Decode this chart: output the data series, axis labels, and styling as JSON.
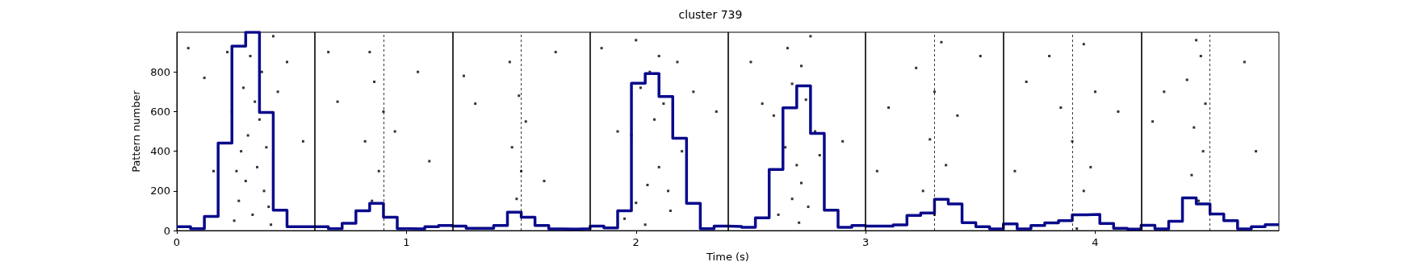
{
  "chart_data": {
    "type": "scatter",
    "title": "cluster 739",
    "xlabel": "Time (s)",
    "ylabel": "Pattern number",
    "xlim": [
      0,
      4.8
    ],
    "ylim": [
      0,
      1000
    ],
    "xticks": [
      0,
      1,
      2,
      3,
      4
    ],
    "yticks": [
      0,
      200,
      400,
      600,
      800
    ],
    "grid": false,
    "marker": "square",
    "series": [
      {
        "color": "#000000",
        "x": [
          0.25,
          0.27,
          0.3,
          0.33,
          0.35,
          0.38,
          0.4,
          0.28,
          0.31,
          0.36,
          0.34,
          0.29,
          0.37,
          0.32,
          0.3,
          0.26,
          0.39,
          0.41,
          0.24,
          0.44,
          0.22,
          0.05,
          0.12,
          0.48,
          0.55,
          0.16,
          0.42,
          0.85,
          0.88,
          0.82,
          0.9,
          0.86,
          0.84,
          0.7,
          1.05,
          1.1,
          0.95,
          0.66,
          1.48,
          1.5,
          1.46,
          1.52,
          1.49,
          1.45,
          1.3,
          1.65,
          1.6,
          1.25,
          1.95,
          2.0,
          2.05,
          2.1,
          2.15,
          2.2,
          1.98,
          2.08,
          2.12,
          2.02,
          2.06,
          2.1,
          2.0,
          2.18,
          1.92,
          2.25,
          2.04,
          2.14,
          1.85,
          2.35,
          2.62,
          2.68,
          2.72,
          2.75,
          2.7,
          2.65,
          2.78,
          2.6,
          2.74,
          2.68,
          2.72,
          2.66,
          2.76,
          2.55,
          2.8,
          2.5,
          2.9,
          2.71,
          3.3,
          3.25,
          3.35,
          3.28,
          3.4,
          3.3,
          3.22,
          3.33,
          3.1,
          3.5,
          3.05,
          3.92,
          3.95,
          3.98,
          3.9,
          3.85,
          4.0,
          3.8,
          3.95,
          3.7,
          4.1,
          3.65,
          4.45,
          4.42,
          4.47,
          4.43,
          4.48,
          4.4,
          4.46,
          4.44,
          4.3,
          4.65,
          4.7,
          4.25
        ],
        "values": [
          50,
          150,
          250,
          80,
          320,
          200,
          120,
          400,
          480,
          560,
          650,
          720,
          800,
          880,
          950,
          300,
          420,
          30,
          600,
          700,
          900,
          920,
          770,
          850,
          450,
          300,
          980,
          150,
          300,
          450,
          600,
          750,
          900,
          650,
          800,
          350,
          500,
          900,
          160,
          300,
          420,
          550,
          680,
          850,
          640,
          900,
          250,
          780,
          60,
          140,
          230,
          320,
          100,
          400,
          480,
          560,
          640,
          720,
          800,
          880,
          960,
          850,
          500,
          700,
          30,
          200,
          920,
          600,
          80,
          160,
          240,
          120,
          330,
          420,
          500,
          580,
          660,
          740,
          830,
          920,
          980,
          640,
          380,
          850,
          450,
          40,
          80,
          200,
          330,
          460,
          580,
          700,
          820,
          950,
          620,
          880,
          300,
          10,
          200,
          320,
          450,
          620,
          700,
          880,
          940,
          750,
          600,
          300,
          150,
          280,
          400,
          520,
          640,
          760,
          880,
          960,
          700,
          850,
          400,
          550
        ]
      },
      {
        "type": "histogram",
        "color": "#0a0a8c",
        "line_style": "solid",
        "bins": [
          0,
          0.06,
          0.12,
          0.18,
          0.24,
          0.3,
          0.36,
          0.42,
          0.48,
          0.54,
          0.6,
          0.66,
          0.72,
          0.78,
          0.84,
          0.9,
          0.96,
          1.02,
          1.08,
          1.14,
          1.2,
          1.26,
          1.32,
          1.38,
          1.44,
          1.5,
          1.56,
          1.62,
          1.68,
          1.74,
          1.8,
          1.86,
          1.92,
          1.98,
          2.04,
          2.1,
          2.16,
          2.22,
          2.28,
          2.34,
          2.4,
          2.46,
          2.52,
          2.58,
          2.64,
          2.7,
          2.76,
          2.82,
          2.88,
          2.94,
          3,
          3.06,
          3.12,
          3.18,
          3.24,
          3.3,
          3.36,
          3.42,
          3.48,
          3.54,
          3.6,
          3.66,
          3.72,
          3.78,
          3.84,
          3.9,
          3.96,
          4.02,
          4.08,
          4.14,
          4.2,
          4.26,
          4.32,
          4.38,
          4.44,
          4.5,
          4.56,
          4.62,
          4.68,
          4.74,
          4.8
        ],
        "values": [
          20,
          10,
          72,
          441,
          930,
          1000,
          596,
          103,
          20,
          20,
          20,
          10,
          37,
          100,
          138,
          67,
          10,
          9,
          20,
          26,
          23,
          12,
          12,
          26,
          93,
          67,
          26,
          9,
          8,
          10,
          23,
          14,
          100,
          743,
          792,
          676,
          466,
          138,
          10,
          23,
          21,
          17,
          64,
          308,
          619,
          730,
          490,
          103,
          17,
          26,
          23,
          23,
          29,
          77,
          89,
          158,
          135,
          40,
          20,
          9,
          34,
          9,
          26,
          39,
          50,
          80,
          82,
          36,
          12,
          8,
          27,
          9,
          47,
          165,
          134,
          84,
          50,
          9,
          20,
          30
        ]
      }
    ],
    "ref_lines": [
      {
        "axis": "x",
        "value": 0.6,
        "color": "#000000",
        "line_style": "solid"
      },
      {
        "axis": "x",
        "value": 1.2,
        "color": "#000000",
        "line_style": "solid"
      },
      {
        "axis": "x",
        "value": 1.8,
        "color": "#000000",
        "line_style": "solid"
      },
      {
        "axis": "x",
        "value": 2.4,
        "color": "#000000",
        "line_style": "solid"
      },
      {
        "axis": "x",
        "value": 3.0,
        "color": "#000000",
        "line_style": "solid"
      },
      {
        "axis": "x",
        "value": 3.6,
        "color": "#000000",
        "line_style": "solid"
      },
      {
        "axis": "x",
        "value": 4.2,
        "color": "#000000",
        "line_style": "solid"
      },
      {
        "axis": "x",
        "value": 0.9,
        "color": "#000000",
        "line_style": "dashed"
      },
      {
        "axis": "x",
        "value": 1.5,
        "color": "#000000",
        "line_style": "dashed"
      },
      {
        "axis": "x",
        "value": 3.3,
        "color": "#000000",
        "line_style": "dashed"
      },
      {
        "axis": "x",
        "value": 3.9,
        "color": "#000000",
        "line_style": "dashed"
      },
      {
        "axis": "x",
        "value": 4.5,
        "color": "#000000",
        "line_style": "dashed"
      }
    ]
  }
}
